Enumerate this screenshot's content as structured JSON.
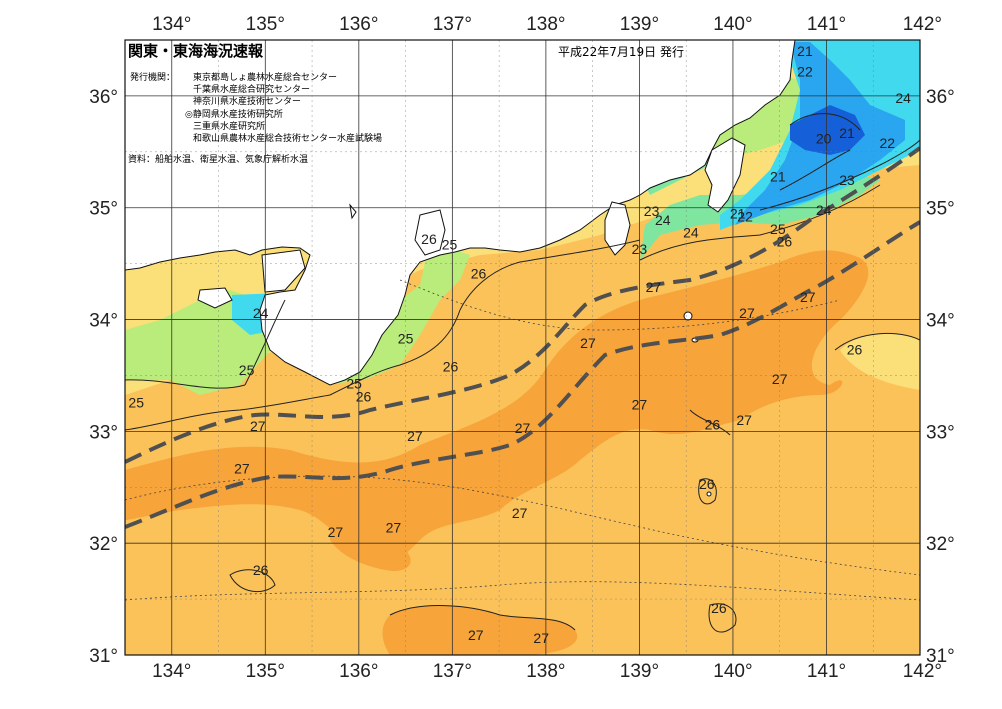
{
  "header": {
    "title": "関東・東海海況速報",
    "date": "平成22年7月19日 発行",
    "issuers_label": "発行機関：",
    "issuers": [
      "東京都島しょ農林水産総合センター",
      "千葉県水産総合研究センター",
      "神奈川県水産技術センター",
      "◎静岡県水産技術研究所",
      "三重県水産研究所",
      "和歌山県農林水産総合技術センター水産試験場"
    ],
    "source": "資料：船舶水温、衛星水温、気象庁解析水温"
  },
  "axes": {
    "lon_labels": [
      "134°",
      "135°",
      "136°",
      "137°",
      "138°",
      "139°",
      "140°",
      "141°",
      "142°"
    ],
    "lat_labels": [
      "36°",
      "35°",
      "34°",
      "33°",
      "32°",
      "31°"
    ],
    "lat_labels_bottom": [
      "31°",
      "31°"
    ]
  },
  "colors": {
    "sea_26_27": "#fbc25a",
    "sea_27_28": "#f7a43a",
    "sea_25_26": "#fbe07a",
    "sea_24_25": "#b9ec7a",
    "sea_23_24": "#7fe6a0",
    "sea_22_23": "#40d9ee",
    "sea_21_22": "#2aa6f0",
    "sea_20_21": "#1560d8",
    "land": "#ffffff",
    "kuroshio_line": "#505050"
  },
  "isotherm_labels": [
    {
      "text": "21",
      "lon": 140.77,
      "lat": 36.4
    },
    {
      "text": "22",
      "lon": 140.77,
      "lat": 36.22
    },
    {
      "text": "24",
      "lon": 141.82,
      "lat": 35.98
    },
    {
      "text": "20",
      "lon": 140.97,
      "lat": 35.62
    },
    {
      "text": "21",
      "lon": 141.22,
      "lat": 35.67
    },
    {
      "text": "22",
      "lon": 141.65,
      "lat": 35.58
    },
    {
      "text": "21",
      "lon": 140.48,
      "lat": 35.28
    },
    {
      "text": "23",
      "lon": 141.22,
      "lat": 35.25
    },
    {
      "text": "24",
      "lon": 140.97,
      "lat": 34.98
    },
    {
      "text": "23",
      "lon": 139.13,
      "lat": 34.97
    },
    {
      "text": "24",
      "lon": 139.25,
      "lat": 34.89
    },
    {
      "text": "24",
      "lon": 139.55,
      "lat": 34.78
    },
    {
      "text": "21",
      "lon": 140.05,
      "lat": 34.95
    },
    {
      "text": "22",
      "lon": 140.13,
      "lat": 34.92
    },
    {
      "text": "25",
      "lon": 140.48,
      "lat": 34.81
    },
    {
      "text": "26",
      "lon": 140.55,
      "lat": 34.7
    },
    {
      "text": "23",
      "lon": 139.0,
      "lat": 34.63
    },
    {
      "text": "26",
      "lon": 136.75,
      "lat": 34.72
    },
    {
      "text": "25",
      "lon": 136.97,
      "lat": 34.67
    },
    {
      "text": "26",
      "lon": 137.28,
      "lat": 34.41
    },
    {
      "text": "27",
      "lon": 139.15,
      "lat": 34.29
    },
    {
      "text": "27",
      "lon": 140.8,
      "lat": 34.2
    },
    {
      "text": "27",
      "lon": 140.15,
      "lat": 34.06
    },
    {
      "text": "24",
      "lon": 134.95,
      "lat": 34.06
    },
    {
      "text": "25",
      "lon": 136.5,
      "lat": 33.83
    },
    {
      "text": "27",
      "lon": 138.45,
      "lat": 33.79
    },
    {
      "text": "26",
      "lon": 141.3,
      "lat": 33.73
    },
    {
      "text": "26",
      "lon": 136.98,
      "lat": 33.58
    },
    {
      "text": "25",
      "lon": 134.8,
      "lat": 33.55
    },
    {
      "text": "27",
      "lon": 140.5,
      "lat": 33.47
    },
    {
      "text": "25",
      "lon": 135.95,
      "lat": 33.43
    },
    {
      "text": "26",
      "lon": 136.05,
      "lat": 33.31
    },
    {
      "text": "25",
      "lon": 133.62,
      "lat": 33.26
    },
    {
      "text": "27",
      "lon": 139.0,
      "lat": 33.24
    },
    {
      "text": "26",
      "lon": 139.78,
      "lat": 33.06
    },
    {
      "text": "27",
      "lon": 140.12,
      "lat": 33.1
    },
    {
      "text": "27",
      "lon": 134.92,
      "lat": 33.05
    },
    {
      "text": "27",
      "lon": 137.75,
      "lat": 33.03
    },
    {
      "text": "27",
      "lon": 136.6,
      "lat": 32.96
    },
    {
      "text": "27",
      "lon": 134.75,
      "lat": 32.67
    },
    {
      "text": "26",
      "lon": 139.72,
      "lat": 32.53
    },
    {
      "text": "27",
      "lon": 137.72,
      "lat": 32.27
    },
    {
      "text": "27",
      "lon": 136.37,
      "lat": 32.14
    },
    {
      "text": "27",
      "lon": 135.75,
      "lat": 32.1
    },
    {
      "text": "26",
      "lon": 134.95,
      "lat": 31.76
    },
    {
      "text": "26",
      "lon": 139.85,
      "lat": 31.42
    },
    {
      "text": "27",
      "lon": 137.25,
      "lat": 31.18
    },
    {
      "text": "27",
      "lon": 137.95,
      "lat": 31.15
    }
  ]
}
